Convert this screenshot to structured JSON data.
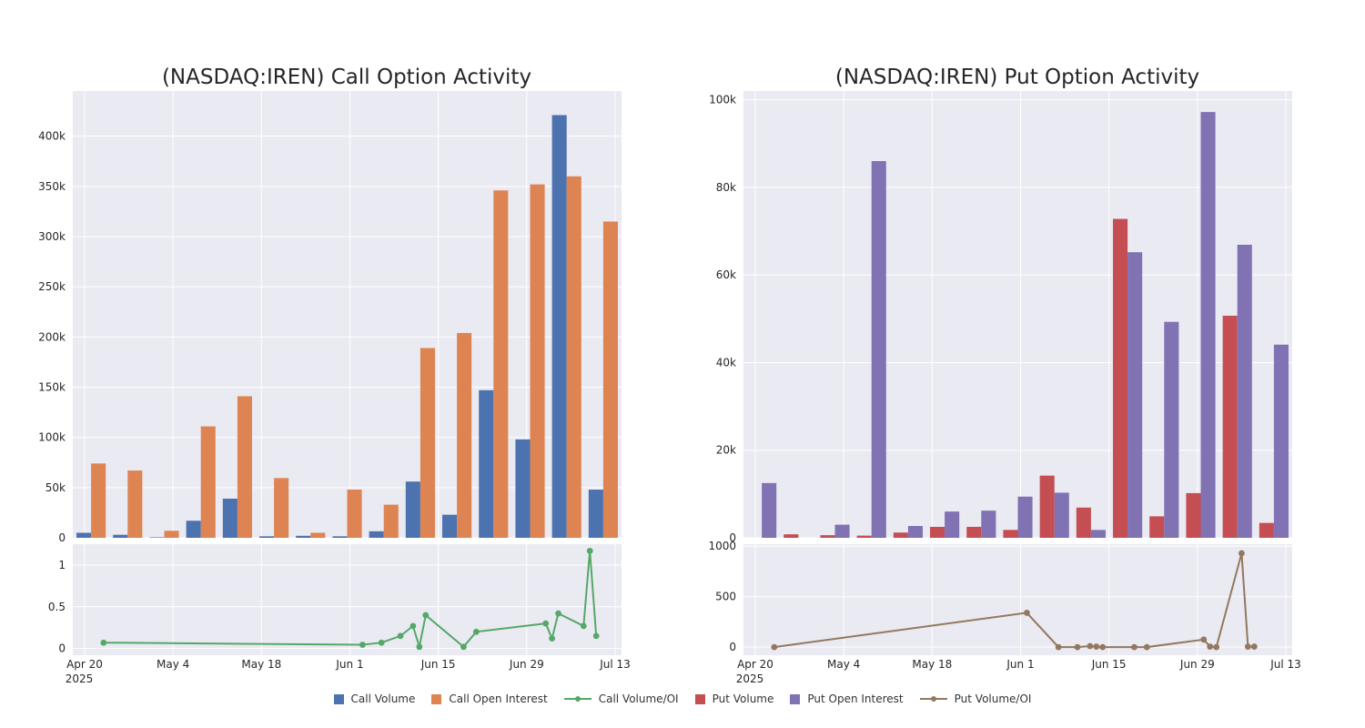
{
  "colors": {
    "call_volume": "#4c72b0",
    "call_oi": "#dd8452",
    "call_ratio": "#55a868",
    "put_volume": "#c44e52",
    "put_oi": "#8172b3",
    "put_ratio": "#937860"
  },
  "legend": [
    {
      "label": "Call Volume",
      "kind": "box",
      "color": "#4c72b0"
    },
    {
      "label": "Call Open Interest",
      "kind": "box",
      "color": "#dd8452"
    },
    {
      "label": "Call Volume/OI",
      "kind": "line",
      "color": "#55a868"
    },
    {
      "label": "Put Volume",
      "kind": "box",
      "color": "#c44e52"
    },
    {
      "label": "Put Open Interest",
      "kind": "box",
      "color": "#8172b3"
    },
    {
      "label": "Put Volume/OI",
      "kind": "line",
      "color": "#937860"
    }
  ],
  "chart_data": [
    {
      "type": "bar",
      "title": "(NASDAQ:IREN) Call Option Activity",
      "ylim": [
        0,
        445000
      ],
      "yticks": [
        0,
        50000,
        100000,
        150000,
        200000,
        250000,
        300000,
        350000,
        400000
      ],
      "ytick_labels": [
        "0",
        "50k",
        "100k",
        "150k",
        "200k",
        "250k",
        "300k",
        "350k",
        "400k"
      ],
      "x_weeks": [
        "2025-04-21",
        "2025-04-28",
        "2025-05-05",
        "2025-05-12",
        "2025-05-19",
        "2025-05-26",
        "2025-06-02",
        "2025-06-09",
        "2025-06-16",
        "2025-06-23",
        "2025-06-30",
        "2025-07-07",
        "2025-07-14",
        "2025-07-21",
        "2025-07-28"
      ],
      "series": [
        {
          "name": "Call Volume",
          "values": [
            5000,
            3000,
            500,
            17000,
            39000,
            1500,
            2000,
            1500,
            6500,
            56000,
            23000,
            147000,
            98000,
            421000,
            48000
          ]
        },
        {
          "name": "Call Open Interest",
          "values": [
            74000,
            67000,
            7000,
            111000,
            141000,
            59500,
            5000,
            48000,
            33000,
            189000,
            204000,
            346000,
            352000,
            360000,
            315000
          ]
        }
      ]
    },
    {
      "type": "line",
      "ylim": [
        -0.08,
        1.25
      ],
      "yticks": [
        0,
        0.5,
        1
      ],
      "ytick_labels": [
        "0",
        "0.5",
        "1"
      ],
      "xlim": [
        "2025-04-20",
        "2025-07-13"
      ],
      "xticks": [
        "2025-04-20",
        "2025-05-04",
        "2025-05-18",
        "2025-06-01",
        "2025-06-15",
        "2025-06-29",
        "2025-07-13"
      ],
      "xtick_labels": [
        "Apr 20",
        "May 4",
        "May 18",
        "Jun 1",
        "Jun 15",
        "Jun 29",
        "Jul 13"
      ],
      "xtick_year": "2025",
      "series": [
        {
          "name": "Call Volume/OI",
          "x": [
            "2025-04-23",
            "2025-06-03",
            "2025-06-06",
            "2025-06-09",
            "2025-06-11",
            "2025-06-12",
            "2025-06-13",
            "2025-06-19",
            "2025-06-21",
            "2025-07-02",
            "2025-07-03",
            "2025-07-04",
            "2025-07-08",
            "2025-07-09",
            "2025-07-10"
          ],
          "y": [
            0.07,
            0.045,
            0.07,
            0.15,
            0.27,
            0.02,
            0.4,
            0.02,
            0.2,
            0.3,
            0.12,
            0.42,
            0.27,
            1.17,
            0.15
          ]
        }
      ]
    },
    {
      "type": "bar",
      "title": "(NASDAQ:IREN) Put Option Activity",
      "ylim": [
        0,
        102000
      ],
      "yticks": [
        0,
        20000,
        40000,
        60000,
        80000,
        100000
      ],
      "ytick_labels": [
        "0",
        "20k",
        "40k",
        "60k",
        "80k",
        "100k"
      ],
      "x_weeks": [
        "2025-04-21",
        "2025-04-28",
        "2025-05-05",
        "2025-05-12",
        "2025-05-19",
        "2025-05-26",
        "2025-06-02",
        "2025-06-09",
        "2025-06-16",
        "2025-06-23",
        "2025-06-30",
        "2025-07-07",
        "2025-07-14",
        "2025-07-21",
        "2025-07-28"
      ],
      "series": [
        {
          "name": "Put Volume",
          "values": [
            0,
            800,
            600,
            500,
            1200,
            2500,
            2500,
            1800,
            14200,
            6900,
            72800,
            4900,
            10200,
            50700,
            3400
          ]
        },
        {
          "name": "Put Open Interest",
          "values": [
            12500,
            0,
            3000,
            86000,
            2700,
            6000,
            6200,
            9400,
            10300,
            1800,
            65200,
            49300,
            97200,
            66900,
            44100
          ]
        }
      ]
    },
    {
      "type": "line",
      "ylim": [
        -80,
        1020
      ],
      "yticks": [
        0,
        500,
        1000
      ],
      "ytick_labels": [
        "0",
        "500",
        "1000"
      ],
      "xlim": [
        "2025-04-20",
        "2025-07-13"
      ],
      "xticks": [
        "2025-04-20",
        "2025-05-04",
        "2025-05-18",
        "2025-06-01",
        "2025-06-15",
        "2025-06-29",
        "2025-07-13"
      ],
      "xtick_labels": [
        "Apr 20",
        "May 4",
        "May 18",
        "Jun 1",
        "Jun 15",
        "Jun 29",
        "Jul 13"
      ],
      "xtick_year": "2025",
      "series": [
        {
          "name": "Put Volume/OI",
          "x": [
            "2025-04-23",
            "2025-06-02",
            "2025-06-07",
            "2025-06-10",
            "2025-06-12",
            "2025-06-13",
            "2025-06-14",
            "2025-06-19",
            "2025-06-21",
            "2025-06-30",
            "2025-07-01",
            "2025-07-02",
            "2025-07-06",
            "2025-07-07",
            "2025-07-08"
          ],
          "y": [
            0,
            340,
            0,
            0,
            10,
            5,
            0,
            0,
            0,
            75,
            5,
            0,
            930,
            5,
            5
          ]
        }
      ]
    }
  ]
}
